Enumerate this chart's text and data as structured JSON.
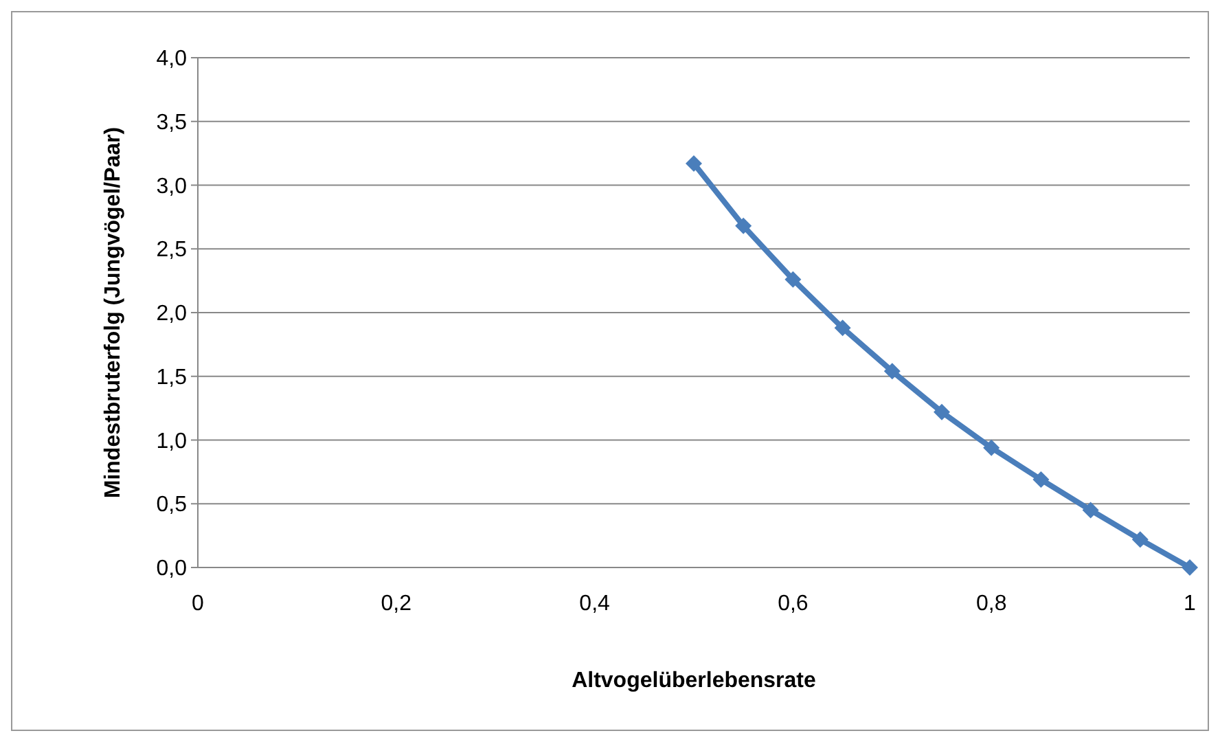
{
  "chart_data": {
    "type": "line",
    "xlabel": "Altvogelüberlebensrate",
    "ylabel": "Mindestbruterfolg (Jungvögel/Paar)",
    "x": [
      0.5,
      0.55,
      0.6,
      0.65,
      0.7,
      0.75,
      0.8,
      0.85,
      0.9,
      0.95,
      1
    ],
    "series": [
      {
        "color": "#4a7ebb",
        "values": [
          3.17,
          2.68,
          2.26,
          1.88,
          1.54,
          1.22,
          0.94,
          0.69,
          0.45,
          0.22,
          0.0
        ]
      }
    ],
    "xlim": [
      0,
      1
    ],
    "xticks": [
      0,
      {
        "value": 0.2,
        "label": "0,2"
      },
      {
        "value": 0.4,
        "label": "0,4"
      },
      {
        "value": 0.6,
        "label": "0,6"
      },
      {
        "value": 0.8,
        "label": "0,8"
      },
      1
    ],
    "ylim": [
      0,
      4
    ],
    "yticks": [
      {
        "value": 0,
        "label": "0,0"
      },
      {
        "value": 0.5,
        "label": "0,5"
      },
      {
        "value": 1,
        "label": "1,0"
      },
      {
        "value": 1.5,
        "label": "1,5"
      },
      {
        "value": 2,
        "label": "2,0"
      },
      {
        "value": 2.5,
        "label": "2,5"
      },
      {
        "value": 3,
        "label": "3,0"
      },
      {
        "value": 3.5,
        "label": "3,5"
      },
      {
        "value": 4,
        "label": "4,0"
      }
    ],
    "grid": "y",
    "marker": "diamond",
    "line_style": "solid"
  }
}
